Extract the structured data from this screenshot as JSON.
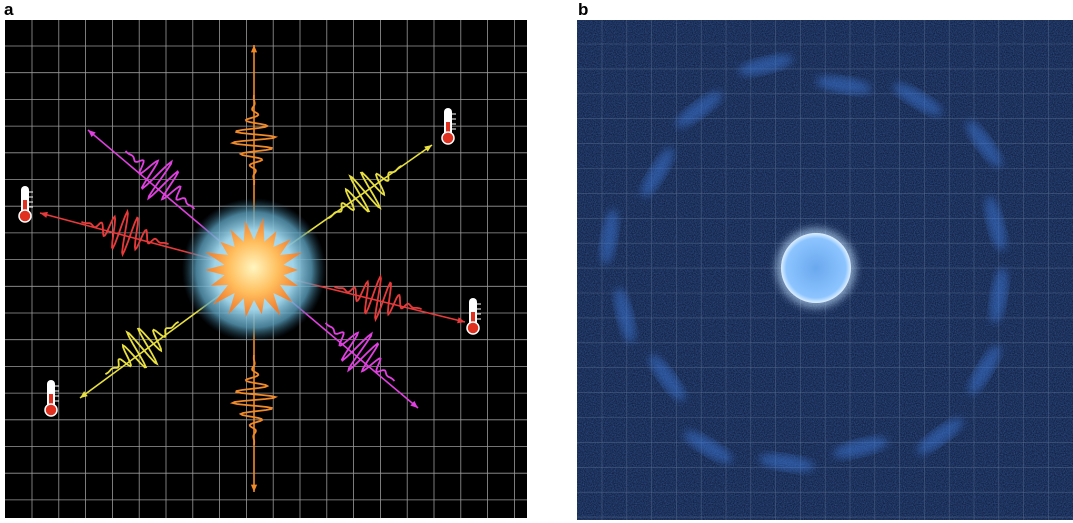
{
  "panels": [
    {
      "label": "a"
    },
    {
      "label": "b"
    }
  ]
}
